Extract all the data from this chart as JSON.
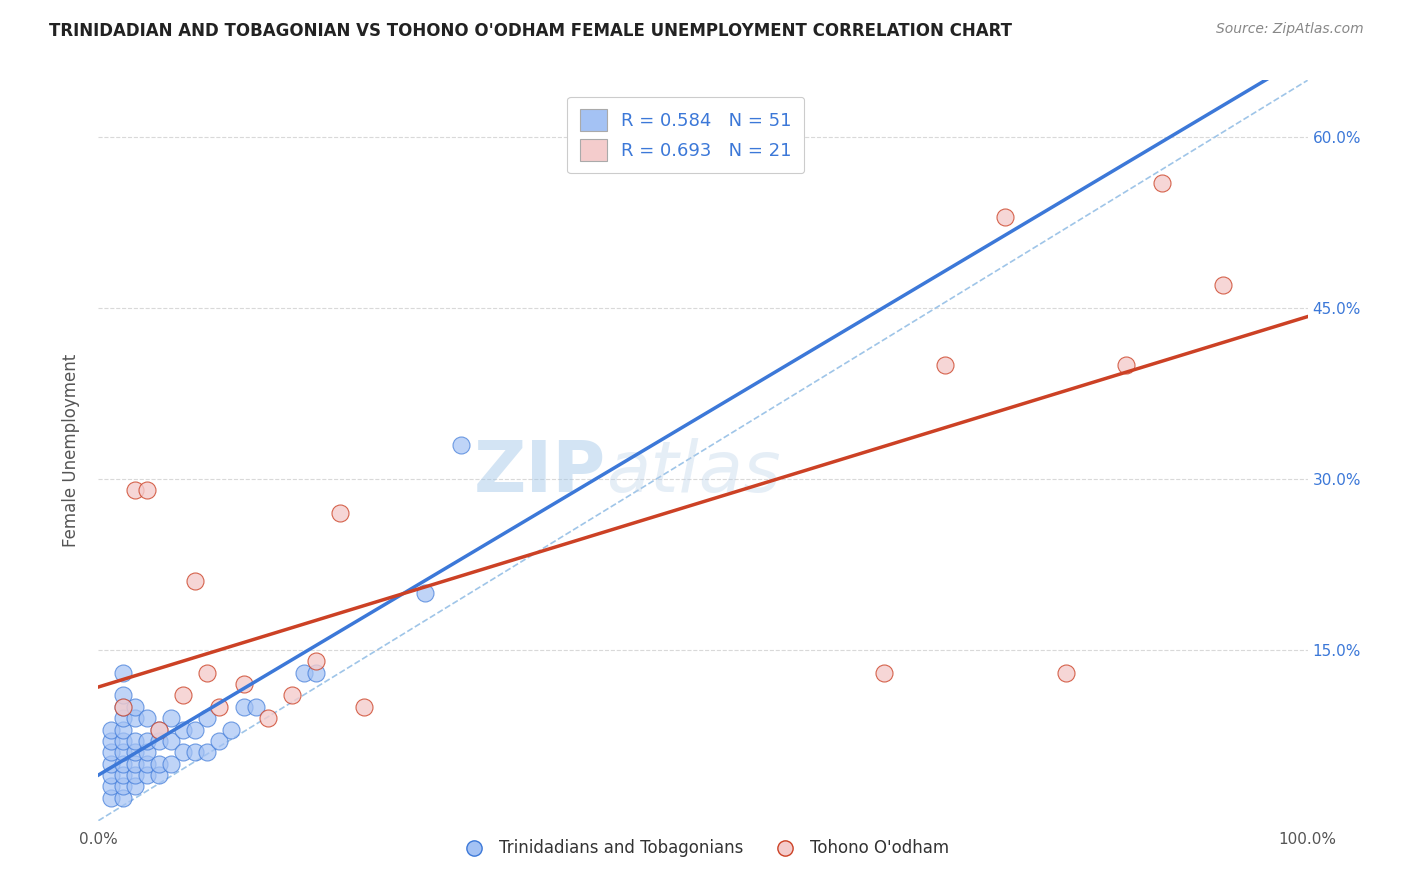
{
  "title": "TRINIDADIAN AND TOBAGONIAN VS TOHONO O'ODHAM FEMALE UNEMPLOYMENT CORRELATION CHART",
  "source": "Source: ZipAtlas.com",
  "ylabel": "Female Unemployment",
  "xlim": [
    0,
    1.0
  ],
  "ylim": [
    0,
    0.65
  ],
  "legend_r_n": [
    "R = 0.584   N = 51",
    "R = 0.693   N = 21"
  ],
  "blue_color": "#a4c2f4",
  "pink_color": "#f4cccc",
  "trend_blue": "#3c78d8",
  "trend_pink": "#cc4125",
  "diag_color": "#9fc5e8",
  "watermark": "ZIPatlas",
  "ytick_vals": [
    0.15,
    0.3,
    0.45,
    0.6
  ],
  "ytick_labels": [
    "15.0%",
    "30.0%",
    "45.0%",
    "60.0%"
  ],
  "blue_scatter_x": [
    0.01,
    0.01,
    0.01,
    0.01,
    0.01,
    0.01,
    0.01,
    0.02,
    0.02,
    0.02,
    0.02,
    0.02,
    0.02,
    0.02,
    0.02,
    0.02,
    0.02,
    0.02,
    0.03,
    0.03,
    0.03,
    0.03,
    0.03,
    0.03,
    0.03,
    0.04,
    0.04,
    0.04,
    0.04,
    0.04,
    0.05,
    0.05,
    0.05,
    0.05,
    0.06,
    0.06,
    0.06,
    0.07,
    0.07,
    0.08,
    0.08,
    0.09,
    0.09,
    0.1,
    0.11,
    0.12,
    0.13,
    0.17,
    0.18,
    0.27,
    0.3
  ],
  "blue_scatter_y": [
    0.02,
    0.03,
    0.04,
    0.05,
    0.06,
    0.07,
    0.08,
    0.02,
    0.03,
    0.04,
    0.05,
    0.06,
    0.07,
    0.08,
    0.09,
    0.1,
    0.11,
    0.13,
    0.03,
    0.04,
    0.05,
    0.06,
    0.07,
    0.09,
    0.1,
    0.04,
    0.05,
    0.06,
    0.07,
    0.09,
    0.04,
    0.05,
    0.07,
    0.08,
    0.05,
    0.07,
    0.09,
    0.06,
    0.08,
    0.06,
    0.08,
    0.06,
    0.09,
    0.07,
    0.08,
    0.1,
    0.1,
    0.13,
    0.13,
    0.2,
    0.33
  ],
  "pink_scatter_x": [
    0.02,
    0.03,
    0.04,
    0.05,
    0.07,
    0.08,
    0.09,
    0.1,
    0.12,
    0.14,
    0.16,
    0.18,
    0.2,
    0.22,
    0.65,
    0.7,
    0.75,
    0.8,
    0.85,
    0.88,
    0.93
  ],
  "pink_scatter_y": [
    0.1,
    0.29,
    0.29,
    0.08,
    0.11,
    0.21,
    0.13,
    0.1,
    0.12,
    0.09,
    0.11,
    0.14,
    0.27,
    0.1,
    0.13,
    0.4,
    0.53,
    0.13,
    0.4,
    0.56,
    0.47
  ],
  "pink_trend_x0": 0.0,
  "pink_trend_y0": 0.1,
  "pink_trend_x1": 1.0,
  "pink_trend_y1": 0.41,
  "blue_trend_x0": 0.0,
  "blue_trend_y0": 0.0,
  "blue_trend_x1": 1.0,
  "blue_trend_y1": 0.65
}
